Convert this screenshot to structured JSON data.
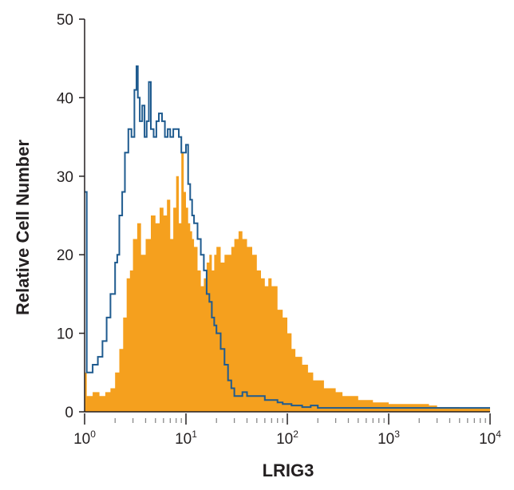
{
  "chart_data": {
    "type": "area",
    "title": "",
    "xlabel": "LRIG3",
    "ylabel": "Relative Cell Number",
    "x_scale": "log",
    "xlim": [
      1,
      10000
    ],
    "ylim": [
      0,
      50
    ],
    "y_ticks": [
      "0",
      "10",
      "20",
      "30",
      "40",
      "50"
    ],
    "x_ticks": [
      {
        "value": 1,
        "base": "10",
        "exp": "0"
      },
      {
        "value": 10,
        "base": "10",
        "exp": "1"
      },
      {
        "value": 100,
        "base": "10",
        "exp": "2"
      },
      {
        "value": 1000,
        "base": "10",
        "exp": "3"
      },
      {
        "value": 10000,
        "base": "10",
        "exp": "4"
      }
    ],
    "series": [
      {
        "style": "filled",
        "color": "#f5a01e",
        "x": [
          1.0,
          1.05,
          1.2,
          1.4,
          1.6,
          1.8,
          2.0,
          2.2,
          2.4,
          2.6,
          2.8,
          3.0,
          3.3,
          3.6,
          4.0,
          4.5,
          5.0,
          5.5,
          6.0,
          6.5,
          7.0,
          7.5,
          8.0,
          8.5,
          9.0,
          9.5,
          10.0,
          10.5,
          11.0,
          11.5,
          12.0,
          13.0,
          14.0,
          15.0,
          16.0,
          17.0,
          18.0,
          19.0,
          20.0,
          22.0,
          24.0,
          26.0,
          28.0,
          30.0,
          33.0,
          36.0,
          40.0,
          45.0,
          50.0,
          55.0,
          60.0,
          65.0,
          70.0,
          80.0,
          90.0,
          100.0,
          110.0,
          120.0,
          140.0,
          160.0,
          180.0,
          200.0,
          230.0,
          260.0,
          300.0,
          350.0,
          400.0,
          500.0,
          600.0,
          700.0,
          800.0,
          1000.0,
          1200.0,
          1500.0,
          2000.0,
          2500.0,
          3000.0,
          5000.0,
          10000.0
        ],
        "y": [
          5,
          2,
          2.5,
          2,
          2.5,
          3,
          5,
          8,
          12,
          17,
          18,
          22,
          24,
          20,
          22,
          25,
          24,
          26,
          25,
          27,
          22,
          26,
          30,
          24,
          33,
          28,
          26,
          24,
          23,
          22,
          21,
          18,
          16,
          17,
          19,
          20,
          18,
          20,
          21,
          19,
          20,
          20,
          21,
          22,
          23,
          22,
          21,
          20,
          18,
          17,
          16,
          17,
          16,
          13,
          12,
          10,
          8,
          7,
          6,
          5,
          4,
          4,
          3,
          3,
          2.5,
          2,
          2,
          1.5,
          1.5,
          1.2,
          1.2,
          1.0,
          1.0,
          1.0,
          1.0,
          0.8,
          0.6,
          0.5,
          0.5
        ]
      },
      {
        "style": "outline",
        "color": "#1f5b8f",
        "x": [
          1.0,
          1.02,
          1.05,
          1.1,
          1.2,
          1.35,
          1.5,
          1.65,
          1.8,
          2.0,
          2.1,
          2.2,
          2.35,
          2.5,
          2.7,
          2.9,
          3.1,
          3.25,
          3.35,
          3.5,
          3.7,
          3.9,
          4.1,
          4.3,
          4.5,
          4.8,
          5.1,
          5.4,
          5.8,
          6.2,
          6.6,
          7.0,
          7.5,
          8.0,
          8.5,
          9.0,
          9.5,
          10.0,
          10.5,
          11.0,
          11.5,
          12.0,
          13.0,
          14.0,
          15.0,
          16.0,
          17.0,
          18.0,
          19.0,
          20.0,
          22.0,
          24.0,
          26.0,
          28.0,
          30.0,
          33.0,
          36.0,
          40.0,
          50.0,
          60.0,
          70.0,
          80.0,
          90.0,
          100.0,
          110.0,
          120.0,
          140.0,
          170.0,
          200.0,
          300.0,
          400.0,
          500.0,
          600.0,
          700.0,
          800.0,
          900.0,
          1000.0,
          1200.0,
          1500.0,
          2000.0,
          3000.0,
          5000.0,
          10000.0
        ],
        "y": [
          28,
          28,
          5,
          5,
          6,
          7,
          9,
          12,
          15,
          19,
          20,
          25,
          28,
          33,
          36,
          35,
          41,
          44,
          40,
          37,
          39,
          35,
          37,
          42,
          36,
          35,
          37,
          38,
          37,
          35,
          36,
          35,
          36,
          36,
          35,
          33,
          33,
          34,
          29,
          27,
          25,
          24,
          22,
          20,
          18,
          15,
          14,
          12,
          11,
          10,
          8,
          6,
          4,
          3,
          2,
          2,
          2.5,
          2,
          2,
          1.5,
          1.5,
          1.2,
          1.0,
          1.0,
          0.8,
          0.8,
          0.6,
          0.8,
          0.5,
          0.5,
          0.5,
          0.5,
          0.5,
          0.5,
          0.5,
          0.5,
          0.5,
          0.5,
          0.5,
          0.5,
          0.5,
          0.5,
          0.5
        ]
      }
    ],
    "grid": false,
    "legend": "none"
  }
}
